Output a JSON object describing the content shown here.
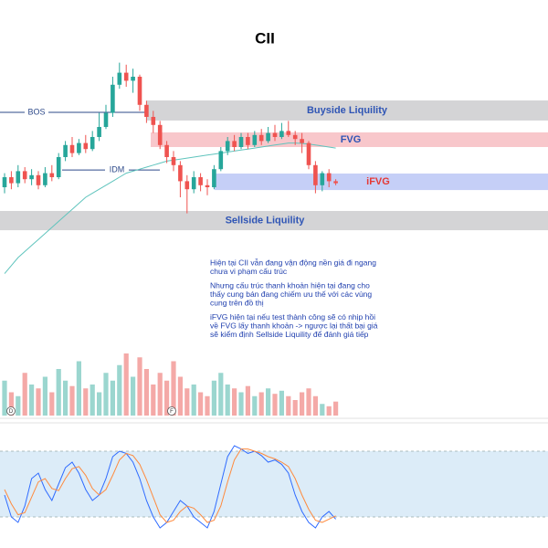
{
  "chart_data": {
    "type": "candlestick",
    "title": "CII",
    "ylim": [
      0,
      100
    ],
    "up_color": "#26a69a",
    "down_color": "#ef5350",
    "open": [
      25,
      30,
      27,
      33,
      29,
      31,
      26,
      32,
      30,
      40,
      46,
      42,
      47,
      44,
      50,
      55,
      62,
      76,
      82,
      78,
      80,
      66,
      60,
      56,
      46,
      40,
      36,
      28,
      24,
      30,
      26,
      25,
      34,
      43,
      48,
      45,
      50,
      46,
      51,
      48,
      52,
      50,
      53,
      51,
      49,
      47,
      36,
      26,
      32,
      28
    ],
    "close": [
      30,
      27,
      33,
      29,
      31,
      26,
      32,
      30,
      40,
      46,
      42,
      47,
      44,
      50,
      55,
      62,
      76,
      82,
      78,
      80,
      66,
      60,
      56,
      46,
      40,
      36,
      28,
      24,
      30,
      26,
      25,
      34,
      43,
      48,
      45,
      50,
      46,
      51,
      48,
      52,
      50,
      53,
      51,
      49,
      47,
      36,
      26,
      32,
      28,
      27
    ],
    "high": [
      32,
      33,
      36,
      35,
      34,
      33,
      35,
      36,
      42,
      48,
      50,
      49,
      51,
      53,
      62,
      66,
      80,
      87,
      86,
      84,
      81,
      68,
      63,
      58,
      48,
      43,
      38,
      31,
      33,
      32,
      29,
      36,
      45,
      50,
      51,
      52,
      52,
      53,
      54,
      55,
      56,
      57,
      58,
      53,
      52,
      48,
      38,
      33,
      34,
      29
    ],
    "low": [
      22,
      24,
      25,
      27,
      26,
      24,
      25,
      28,
      29,
      38,
      40,
      41,
      42,
      43,
      48,
      54,
      60,
      74,
      75,
      72,
      63,
      57,
      52,
      44,
      37,
      33,
      20,
      12,
      22,
      23,
      21,
      24,
      33,
      41,
      43,
      44,
      44,
      45,
      46,
      47,
      48,
      49,
      50,
      46,
      42,
      34,
      22,
      23,
      25,
      26
    ],
    "ma": {
      "color": "#5fc4bd",
      "values": [
        -18,
        -14,
        -10,
        -7,
        -4,
        -1,
        2,
        5,
        8,
        11,
        14,
        17,
        20,
        22,
        24,
        26,
        28,
        30,
        32,
        33,
        34,
        35,
        36,
        37,
        38,
        38.5,
        39,
        39.5,
        40,
        40.5,
        41,
        41.5,
        42,
        42.5,
        43,
        43.5,
        44,
        44.5,
        45,
        45.5,
        46,
        46.5,
        47,
        47,
        46.8,
        46.5,
        46,
        45.5,
        45,
        44.5
      ]
    },
    "levels": [
      {
        "name": "BOS",
        "value": 62.3
      },
      {
        "name": "IDM",
        "value": 33.6
      }
    ],
    "zones": [
      {
        "name": "Buyside Liquility",
        "range": [
          58.2,
          68.2
        ],
        "color": "#d4d4d6",
        "text_color": "#2f55b5"
      },
      {
        "name": "FVG",
        "range": [
          45,
          52.3
        ],
        "color": "#f8c7cb",
        "text_color": "#2f55b5"
      },
      {
        "name": "iFVG",
        "range": [
          23.6,
          31.8
        ],
        "color": "#c5cff7",
        "text_color": "#e53935"
      },
      {
        "name": "Sellside Liquility",
        "range": [
          3.6,
          13.2
        ],
        "color": "#d4d4d6",
        "text_color": "#2f55b5"
      }
    ],
    "notes": [
      [
        "Hiện tại CII vẫn đang vận động nền giá đi ngang",
        "chưa vi phạm cấu trúc"
      ],
      [
        "Nhưng cấu trúc thanh khoản hiện tại đang cho",
        "thấy cung bán đang chiếm ưu thế với các vùng",
        "cung trên đồ thị"
      ],
      [
        "iFVG hiện tại nếu test thành công sẽ có nhịp hồi",
        "về FVG lấy thanh khoản -> ngược lại thất bại giá",
        "sẽ kiểm định Sellside Liquility để đánh giá tiếp"
      ]
    ],
    "volume": {
      "ylim": [
        0,
        100
      ],
      "values": [
        45,
        30,
        25,
        55,
        40,
        35,
        50,
        30,
        60,
        45,
        38,
        70,
        35,
        40,
        30,
        55,
        45,
        65,
        80,
        50,
        75,
        60,
        40,
        55,
        45,
        70,
        50,
        35,
        40,
        30,
        25,
        45,
        55,
        40,
        35,
        30,
        38,
        25,
        30,
        35,
        28,
        32,
        25,
        20,
        30,
        35,
        25,
        15,
        12,
        18
      ]
    },
    "markers": [
      "D",
      "F"
    ],
    "stoch": {
      "ylim": [
        0,
        100
      ],
      "band": [
        20,
        80
      ],
      "band_color": "#dcecf8",
      "series": [
        {
          "color": "#2f6bff",
          "values": [
            40,
            20,
            15,
            30,
            55,
            60,
            45,
            35,
            50,
            65,
            70,
            60,
            45,
            35,
            40,
            55,
            75,
            80,
            78,
            70,
            55,
            35,
            20,
            10,
            15,
            25,
            35,
            30,
            20,
            15,
            10,
            25,
            50,
            75,
            85,
            82,
            78,
            80,
            76,
            70,
            72,
            68,
            60,
            40,
            25,
            15,
            10,
            20,
            25,
            18
          ]
        },
        {
          "color": "#ff8a3d",
          "values": [
            45,
            32,
            22,
            24,
            38,
            52,
            55,
            46,
            44,
            55,
            64,
            66,
            58,
            46,
            40,
            45,
            58,
            72,
            78,
            76,
            68,
            54,
            38,
            22,
            15,
            17,
            25,
            30,
            28,
            22,
            15,
            17,
            30,
            52,
            72,
            82,
            82,
            80,
            78,
            75,
            73,
            70,
            66,
            55,
            40,
            27,
            17,
            15,
            18,
            21
          ]
        }
      ]
    }
  }
}
